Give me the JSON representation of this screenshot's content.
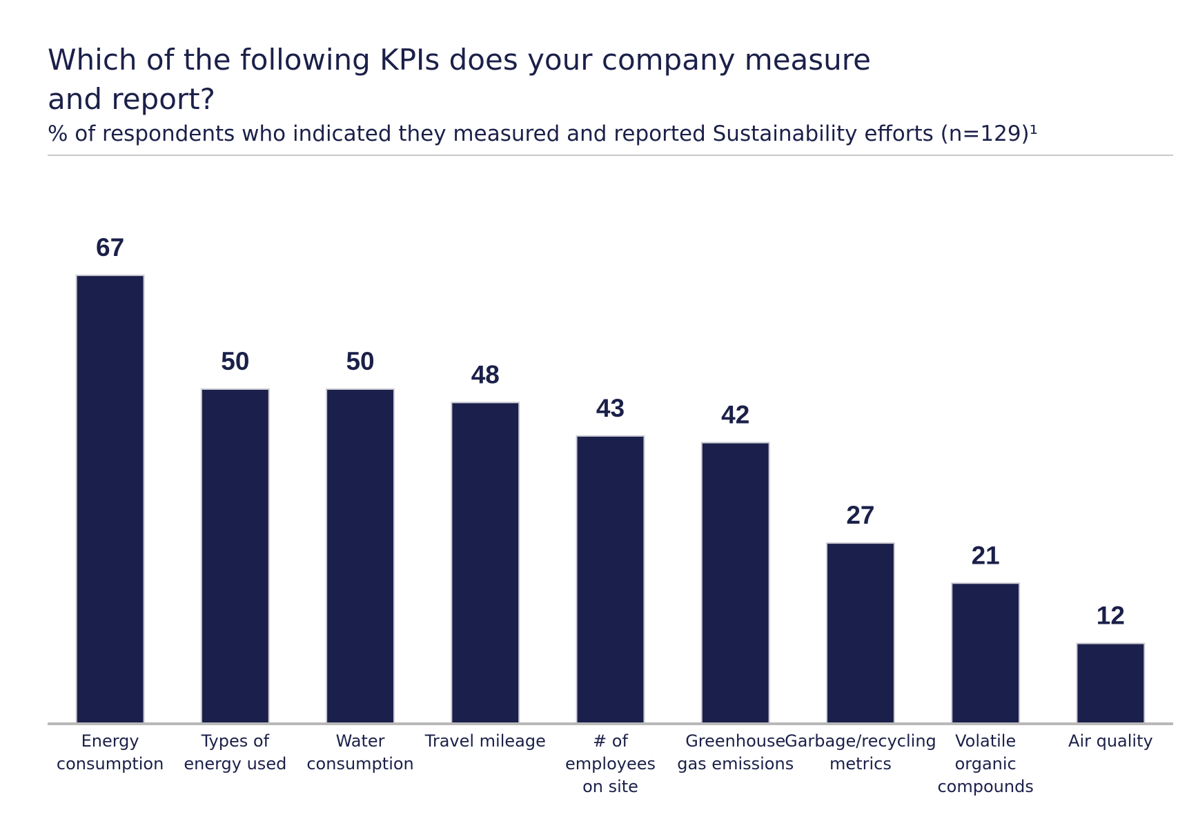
{
  "chart_data": {
    "type": "bar",
    "title": "Which of the following KPIs does your company measure and report?",
    "subtitle": "% of respondents who indicated they measured and reported Sustainability efforts (n=129)¹",
    "categories": [
      [
        "Energy",
        "consumption"
      ],
      [
        "Types of",
        "energy used"
      ],
      [
        "Water",
        "consumption"
      ],
      [
        "Travel mileage"
      ],
      [
        "# of",
        "employees",
        "on site"
      ],
      [
        "Greenhouse",
        "gas emissions"
      ],
      [
        "Garbage/recycling",
        "metrics"
      ],
      [
        "Volatile",
        "organic",
        "compounds"
      ],
      [
        "Air quality"
      ]
    ],
    "values": [
      67,
      50,
      50,
      48,
      43,
      42,
      27,
      21,
      12
    ],
    "color": "#1b1f4b",
    "ylim": [
      0,
      80
    ]
  }
}
